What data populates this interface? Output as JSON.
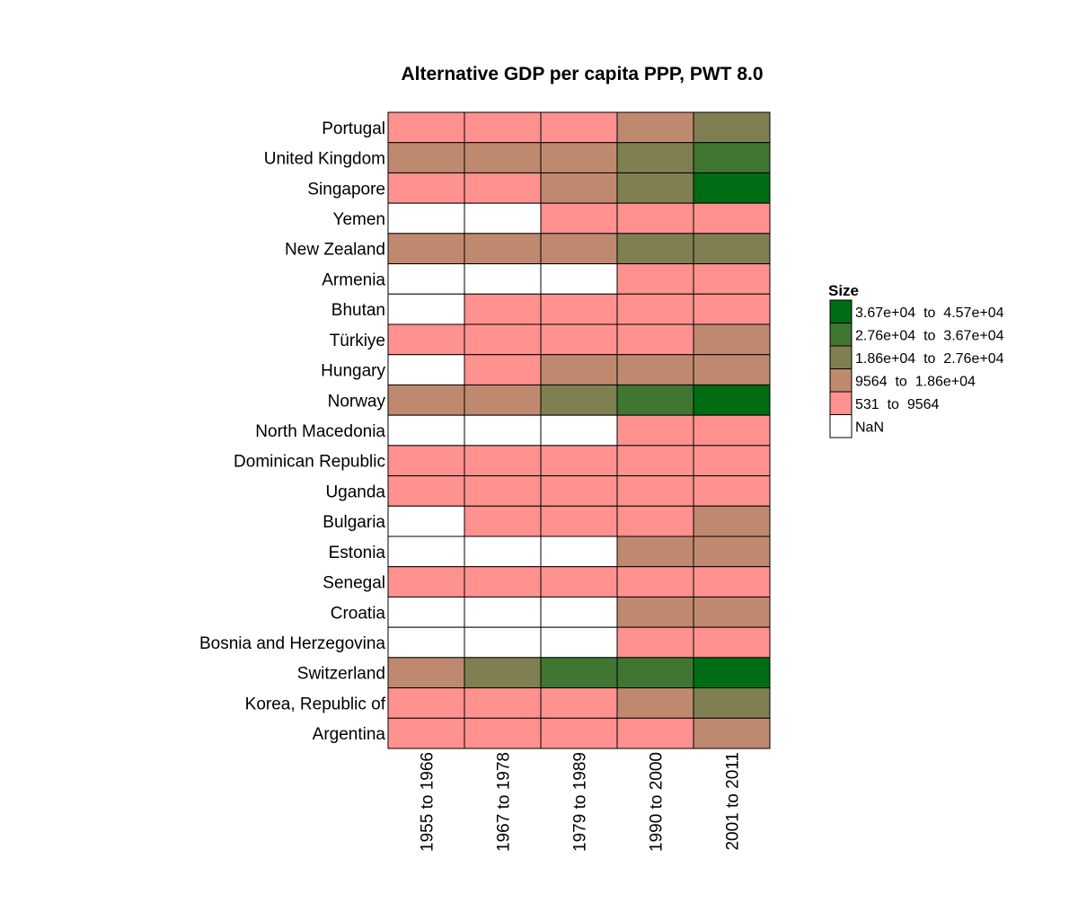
{
  "chart_data": {
    "type": "heatmap",
    "title": "Alternative GDP per capita PPP, PWT 8.0",
    "x_categories": [
      "1955 to 1966",
      "1967 to 1978",
      "1979 to 1989",
      "1990 to 2000",
      "2001 to 2011"
    ],
    "y_categories": [
      "Portugal",
      "United Kingdom",
      "Singapore",
      "Yemen",
      "New Zealand",
      "Armenia",
      "Bhutan",
      "Türkiye",
      "Hungary",
      "Norway",
      "North Macedonia",
      "Dominican Republic",
      "Uganda",
      "Bulgaria",
      "Estonia",
      "Senegal",
      "Croatia",
      "Bosnia and Herzegovina",
      "Switzerland",
      "Korea, Republic of",
      "Argentina"
    ],
    "cell_bins": [
      [
        1,
        1,
        1,
        2,
        3
      ],
      [
        2,
        2,
        2,
        3,
        4
      ],
      [
        1,
        1,
        2,
        3,
        5
      ],
      [
        0,
        0,
        1,
        1,
        1
      ],
      [
        2,
        2,
        2,
        3,
        3
      ],
      [
        0,
        0,
        0,
        1,
        1
      ],
      [
        0,
        1,
        1,
        1,
        1
      ],
      [
        1,
        1,
        1,
        1,
        2
      ],
      [
        0,
        1,
        2,
        2,
        2
      ],
      [
        2,
        2,
        3,
        4,
        5
      ],
      [
        0,
        0,
        0,
        1,
        1
      ],
      [
        1,
        1,
        1,
        1,
        1
      ],
      [
        1,
        1,
        1,
        1,
        1
      ],
      [
        0,
        1,
        1,
        1,
        2
      ],
      [
        0,
        0,
        0,
        2,
        2
      ],
      [
        1,
        1,
        1,
        1,
        1
      ],
      [
        0,
        0,
        0,
        2,
        2
      ],
      [
        0,
        0,
        0,
        1,
        1
      ],
      [
        2,
        3,
        4,
        4,
        5
      ],
      [
        1,
        1,
        1,
        2,
        3
      ],
      [
        1,
        1,
        1,
        1,
        2
      ]
    ],
    "legend": {
      "title": "Size",
      "placement": "right",
      "entries": [
        {
          "label": "3.67e+04  to  4.57e+04",
          "range": [
            36700,
            45700
          ],
          "color": "#006D14",
          "bin": 5
        },
        {
          "label": "2.76e+04  to  3.67e+04",
          "range": [
            27600,
            36700
          ],
          "color": "#3F7632",
          "bin": 4
        },
        {
          "label": "1.86e+04  to  2.76e+04",
          "range": [
            18600,
            27600
          ],
          "color": "#7F7F51",
          "bin": 3
        },
        {
          "label": "9564  to  1.86e+04",
          "range": [
            9564,
            18600
          ],
          "color": "#BF8970",
          "bin": 2
        },
        {
          "label": "531  to  9564",
          "range": [
            531,
            9564
          ],
          "color": "#FF918F",
          "bin": 1
        },
        {
          "label": "NaN",
          "range": null,
          "color": "#FFFFFF",
          "bin": 0
        }
      ]
    },
    "grid": false
  }
}
